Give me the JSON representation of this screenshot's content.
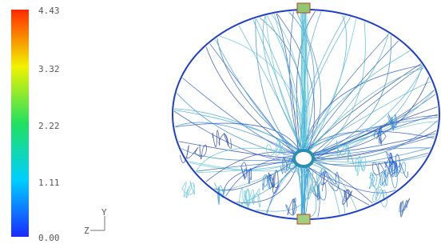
{
  "colorbar": {
    "ticks": [
      "4.43",
      "3.32",
      "2.22",
      "1.11",
      "0.00"
    ]
  },
  "triad": {
    "z": "Z",
    "y": "Y"
  }
}
